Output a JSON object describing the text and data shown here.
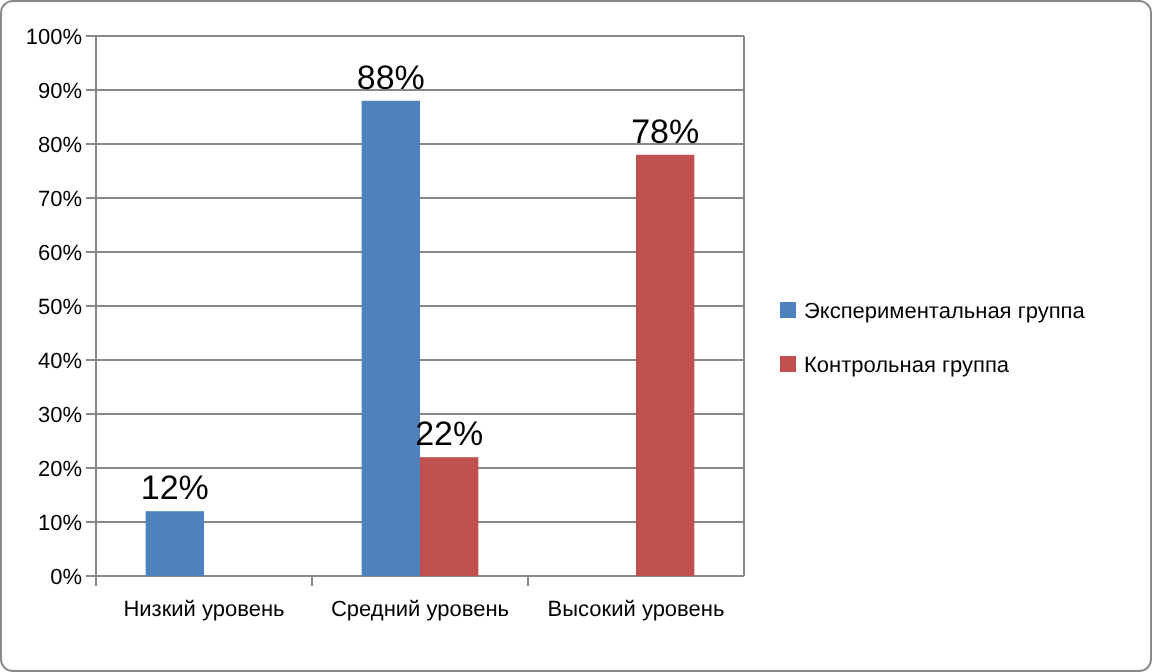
{
  "chart_data": {
    "type": "bar",
    "categories": [
      "Низкий уровень",
      "Средний уровень",
      "Высокий уровень"
    ],
    "series": [
      {
        "name": "Экспериментальная группа",
        "color": "#4f81bd",
        "values": [
          12,
          88,
          null
        ],
        "value_labels": [
          "12%",
          "88%",
          null
        ]
      },
      {
        "name": "Контрольная группа",
        "color": "#c0504d",
        "values": [
          null,
          22,
          78
        ],
        "value_labels": [
          null,
          "22%",
          "78%"
        ]
      }
    ],
    "ylim": [
      0,
      100
    ],
    "yticks": [
      {
        "value": 0,
        "label": "0%"
      },
      {
        "value": 10,
        "label": "10%"
      },
      {
        "value": 20,
        "label": "20%"
      },
      {
        "value": 30,
        "label": "30%"
      },
      {
        "value": 40,
        "label": "40%"
      },
      {
        "value": 50,
        "label": "50%"
      },
      {
        "value": 60,
        "label": "60%"
      },
      {
        "value": 70,
        "label": "70%"
      },
      {
        "value": 80,
        "label": "80%"
      },
      {
        "value": 90,
        "label": "90%"
      },
      {
        "value": 100,
        "label": "100%"
      }
    ],
    "grid": "y",
    "legend": "right"
  }
}
